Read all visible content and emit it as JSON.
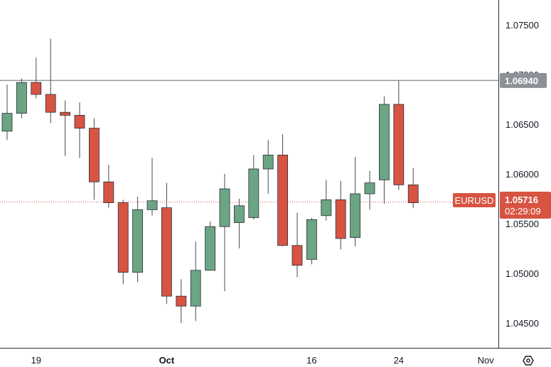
{
  "chart_data": {
    "type": "candlestick",
    "symbol": "EURUSD",
    "last_price": "1.05716",
    "countdown": "02:29:09",
    "reference_line": "1.06940",
    "ylim": [
      1.0425,
      1.0775
    ],
    "y_ticks": [
      "1.07500",
      "1.07000",
      "1.06500",
      "1.06000",
      "1.05500",
      "1.05000",
      "1.04500"
    ],
    "y_tick_values": [
      1.075,
      1.07,
      1.065,
      1.06,
      1.055,
      1.05,
      1.045
    ],
    "x_ticks": [
      {
        "label": "19",
        "index": 2
      },
      {
        "label": "Oct",
        "index": 11
      },
      {
        "label": "16",
        "index": 21
      },
      {
        "label": "24",
        "index": 27
      },
      {
        "label": "Nov",
        "index": 33
      }
    ],
    "candles": [
      {
        "o": 1.0643,
        "h": 1.069,
        "l": 1.0634,
        "c": 1.0661
      },
      {
        "o": 1.0661,
        "h": 1.0696,
        "l": 1.0656,
        "c": 1.0692
      },
      {
        "o": 1.0692,
        "h": 1.0717,
        "l": 1.0676,
        "c": 1.068
      },
      {
        "o": 1.068,
        "h": 1.0736,
        "l": 1.0651,
        "c": 1.0662
      },
      {
        "o": 1.0662,
        "h": 1.0674,
        "l": 1.0618,
        "c": 1.0659
      },
      {
        "o": 1.0659,
        "h": 1.0672,
        "l": 1.0616,
        "c": 1.0646
      },
      {
        "o": 1.0646,
        "h": 1.0656,
        "l": 1.0574,
        "c": 1.0592
      },
      {
        "o": 1.0592,
        "h": 1.0609,
        "l": 1.0566,
        "c": 1.0571
      },
      {
        "o": 1.0571,
        "h": 1.0574,
        "l": 1.0489,
        "c": 1.0501
      },
      {
        "o": 1.0501,
        "h": 1.0577,
        "l": 1.0491,
        "c": 1.0564
      },
      {
        "o": 1.0564,
        "h": 1.0616,
        "l": 1.0558,
        "c": 1.0573
      },
      {
        "o": 1.0566,
        "h": 1.0591,
        "l": 1.0469,
        "c": 1.0477
      },
      {
        "o": 1.0477,
        "h": 1.0494,
        "l": 1.045,
        "c": 1.0467
      },
      {
        "o": 1.0467,
        "h": 1.0532,
        "l": 1.0452,
        "c": 1.0503
      },
      {
        "o": 1.0503,
        "h": 1.0552,
        "l": 1.0503,
        "c": 1.0547
      },
      {
        "o": 1.0547,
        "h": 1.06,
        "l": 1.0482,
        "c": 1.0585
      },
      {
        "o": 1.0551,
        "h": 1.0575,
        "l": 1.0525,
        "c": 1.0568
      },
      {
        "o": 1.0556,
        "h": 1.0619,
        "l": 1.0554,
        "c": 1.0605
      },
      {
        "o": 1.0605,
        "h": 1.0634,
        "l": 1.058,
        "c": 1.0619
      },
      {
        "o": 1.0619,
        "h": 1.064,
        "l": 1.0527,
        "c": 1.0528
      },
      {
        "o": 1.0528,
        "h": 1.0561,
        "l": 1.0496,
        "c": 1.0508
      },
      {
        "o": 1.0514,
        "h": 1.0556,
        "l": 1.0509,
        "c": 1.0554
      },
      {
        "o": 1.0558,
        "h": 1.0594,
        "l": 1.0553,
        "c": 1.0574
      },
      {
        "o": 1.0574,
        "h": 1.0593,
        "l": 1.0524,
        "c": 1.0535
      },
      {
        "o": 1.0536,
        "h": 1.0617,
        "l": 1.0527,
        "c": 1.058
      },
      {
        "o": 1.058,
        "h": 1.0603,
        "l": 1.0564,
        "c": 1.0591
      },
      {
        "o": 1.0594,
        "h": 1.0678,
        "l": 1.057,
        "c": 1.067
      },
      {
        "o": 1.067,
        "h": 1.0694,
        "l": 1.0584,
        "c": 1.0589
      },
      {
        "o": 1.0589,
        "h": 1.0606,
        "l": 1.0566,
        "c": 1.0571
      }
    ],
    "colors": {
      "up": "#6ba583",
      "down": "#d75442",
      "wick": "#4a4a4a",
      "last_badge": "#d75442",
      "ref_badge": "#8e9098"
    }
  }
}
